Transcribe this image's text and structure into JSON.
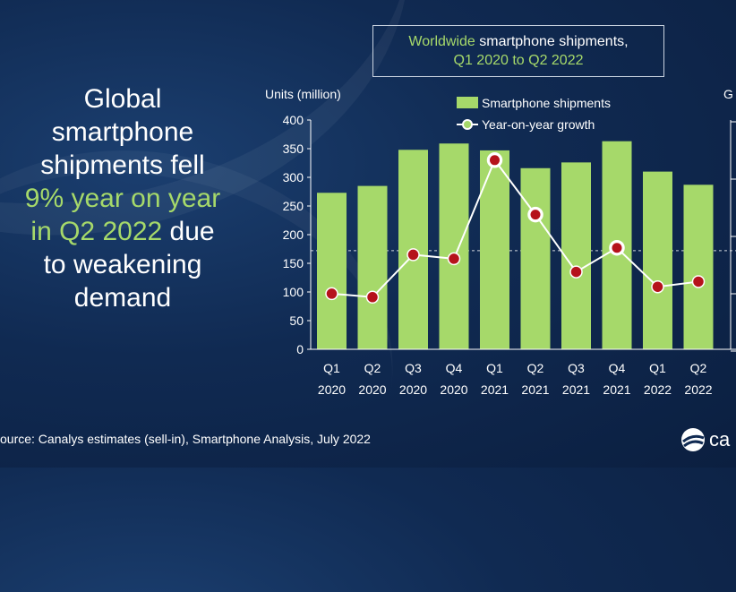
{
  "headline": {
    "line1": "Global",
    "line2": "smartphone",
    "line3": "shipments fell",
    "line4": "9% year on year",
    "line5_highlight": "in Q2 2022",
    "line5_rest": " due",
    "line6": "to weakening",
    "line7": "demand"
  },
  "title_box": {
    "line1_green": "Worldwide",
    "line1_rest": " smartphone shipments,",
    "line2_green": "Q1 2020 to Q2 2022"
  },
  "source": "ource: Canalys estimates (sell-in), Smartphone Analysis, July 2022",
  "logo": {
    "text": "ca",
    "icon": "canalys-logo-icon"
  },
  "colors": {
    "bar": "#a6d96a",
    "marker": "#b5121b",
    "line": "#ffffff",
    "background": "#102a52"
  },
  "chart_data": {
    "type": "bar",
    "title": "Worldwide smartphone shipments, Q1 2020 to Q2 2022",
    "ylabel": "Units (million)",
    "ylabel_right_fragment": "G",
    "ylim": [
      0,
      400
    ],
    "yticks": [
      "0",
      "50",
      "100",
      "150",
      "200",
      "250",
      "300",
      "350",
      "400"
    ],
    "categories": [
      [
        "Q1",
        "2020"
      ],
      [
        "Q2",
        "2020"
      ],
      [
        "Q3",
        "2020"
      ],
      [
        "Q4",
        "2020"
      ],
      [
        "Q1",
        "2021"
      ],
      [
        "Q2",
        "2021"
      ],
      [
        "Q3",
        "2021"
      ],
      [
        "Q4",
        "2021"
      ],
      [
        "Q1",
        "2022"
      ],
      [
        "Q2",
        "2022"
      ]
    ],
    "series": [
      {
        "name": "Smartphone shipments",
        "type": "bar",
        "values": [
          273,
          285,
          348,
          359,
          347,
          316,
          326,
          363,
          310,
          287
        ]
      },
      {
        "name": "Year-on-year growth",
        "type": "line",
        "plotted_on_left_scale": [
          97,
          91,
          165,
          158,
          330,
          235,
          135,
          177,
          109,
          118
        ],
        "highlighted_points": [
          4,
          5,
          7
        ]
      }
    ],
    "reference_line": 172,
    "legend": [
      "Smartphone shipments",
      "Year-on-year growth"
    ],
    "legend_position": "top-center"
  }
}
